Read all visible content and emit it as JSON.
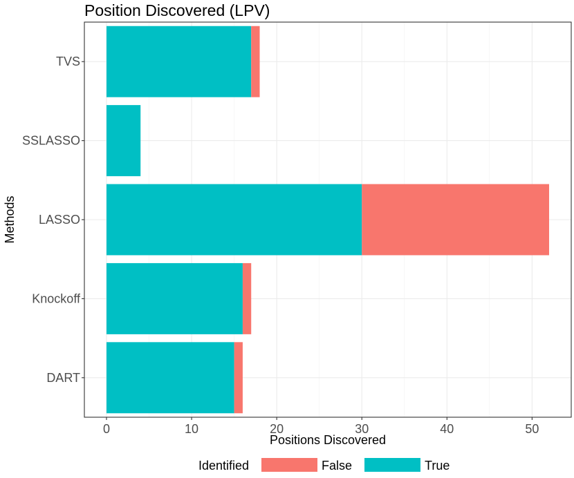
{
  "chart_data": {
    "type": "bar",
    "orientation": "horizontal",
    "stacked": true,
    "title": "Position Discovered (LPV)",
    "xlabel": "Positions Discovered",
    "ylabel": "Methods",
    "categories": [
      "TVS",
      "SSLASSO",
      "LASSO",
      "Knockoff",
      "DART"
    ],
    "series": [
      {
        "name": "True",
        "color": "#00BFC4",
        "values": [
          17,
          4,
          30,
          16,
          15
        ]
      },
      {
        "name": "False",
        "color": "#F8766D",
        "values": [
          1,
          0,
          22,
          1,
          1
        ]
      }
    ],
    "xlim": [
      -2.6,
      54.6
    ],
    "xticks": [
      0,
      10,
      20,
      30,
      40,
      50
    ],
    "xtick_labels": [
      "0",
      "10",
      "20",
      "30",
      "40",
      "50"
    ],
    "grid": true,
    "legend": {
      "title": "Identified",
      "position": "bottom",
      "entries": [
        {
          "label": "False",
          "color": "#F8766D"
        },
        {
          "label": "True",
          "color": "#00BFC4"
        }
      ]
    }
  }
}
